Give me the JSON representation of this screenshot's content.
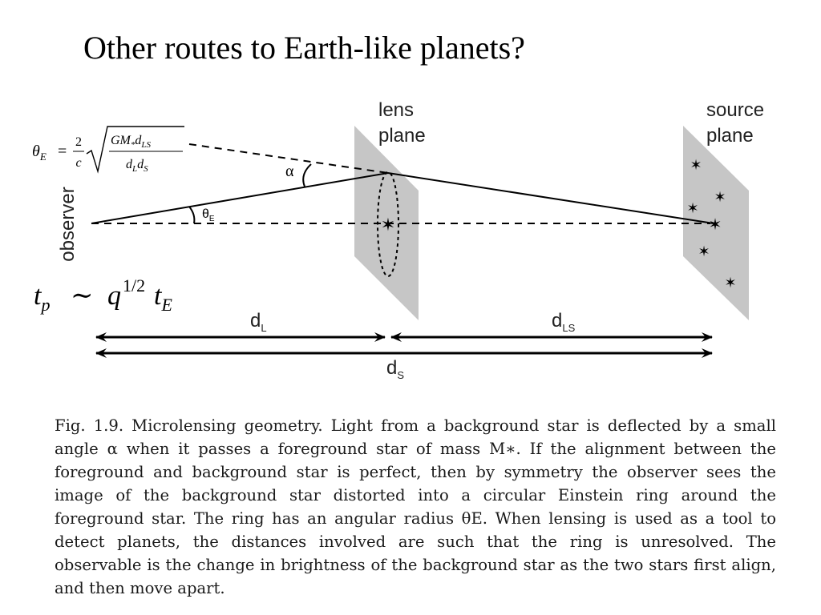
{
  "title": "Other routes to Earth-like planets?",
  "diagram": {
    "lens_plane_label": [
      "lens",
      "plane"
    ],
    "source_plane_label": [
      "source",
      "plane"
    ],
    "observer_label": "observer",
    "alpha_label": "α",
    "theta_label": "θ",
    "theta_sub": "E",
    "einstein_formula": {
      "lhs": "θ",
      "lhs_sub": "E",
      "equals": "=",
      "frac_num": "2",
      "frac_den": "c",
      "rad_num": "GM",
      "rad_num_sub1": "*",
      "rad_num_mid": "d",
      "rad_num_sub2": "LS",
      "rad_den_a": "d",
      "rad_den_sub_a": "L",
      "rad_den_b": "d",
      "rad_den_sub_b": "S"
    },
    "timescale_formula": {
      "t": "t",
      "t_sub": "p",
      "sim": "∼",
      "q": "q",
      "q_exp": "1/2",
      "tE": "t",
      "tE_sub": "E"
    },
    "distances": {
      "dL": "d",
      "dL_sub": "L",
      "dLS": "d",
      "dLS_sub": "LS",
      "dS": "d",
      "dS_sub": "S"
    }
  },
  "caption": "Fig. 1.9. Microlensing geometry. Light from a background star is deflected by a small angle α when it passes a foreground star of mass M∗. If the alignment between the foreground and background star is perfect, then by symmetry the observer sees the image of the background star distorted into a circular Einstein ring around the foreground star. The ring has an angular radius θE. When lensing is used as a tool to detect planets, the distances involved are such that the ring is unresolved. The observable is the change in brightness of the background star as the two stars first align, and then move apart."
}
